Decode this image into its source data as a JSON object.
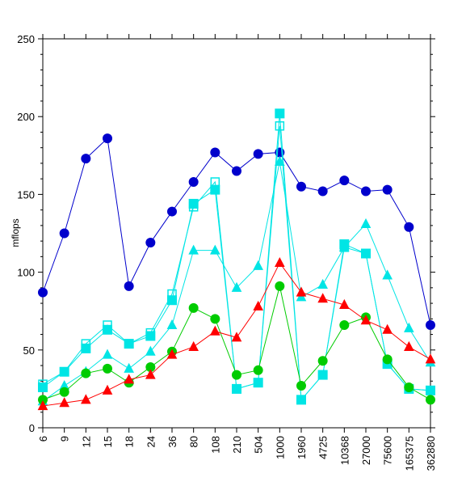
{
  "chart_data": {
    "type": "line",
    "title": "",
    "xlabel": "",
    "ylabel": "mflops",
    "ylim": [
      0,
      250
    ],
    "yticks": [
      0,
      50,
      100,
      150,
      200,
      250
    ],
    "grid": false,
    "legend": "none",
    "categories": [
      "6",
      "9",
      "12",
      "15",
      "18",
      "24",
      "36",
      "80",
      "108",
      "210",
      "504",
      "1000",
      "1960",
      "4725",
      "10368",
      "27000",
      "75600",
      "165375",
      "362880"
    ],
    "series": [
      {
        "color": "#0000cc",
        "marker": "circle",
        "filled": true,
        "values": [
          87,
          125,
          173,
          186,
          91,
          119,
          139,
          158,
          177,
          165,
          176,
          177,
          155,
          152,
          159,
          152,
          153,
          129,
          66
        ]
      },
      {
        "color": "#00e5e5",
        "marker": "square",
        "filled": false,
        "values": [
          28,
          36,
          54,
          66,
          54,
          61,
          86,
          142,
          158,
          25,
          29,
          194,
          18,
          34,
          116,
          112,
          41,
          25,
          24
        ]
      },
      {
        "color": "#00e5e5",
        "marker": "square",
        "filled": true,
        "values": [
          26,
          36,
          51,
          63,
          54,
          59,
          82,
          144,
          153,
          25,
          29,
          202,
          18,
          34,
          118,
          112,
          41,
          25,
          24
        ]
      },
      {
        "color": "#00e5e5",
        "marker": "triangle",
        "filled": true,
        "values": [
          17,
          27,
          36,
          47,
          38,
          49,
          66,
          114,
          114,
          90,
          104,
          171,
          84,
          92,
          116,
          131,
          98,
          64,
          42
        ]
      },
      {
        "color": "#00cc00",
        "marker": "circle",
        "filled": true,
        "values": [
          18,
          23,
          35,
          38,
          29,
          39,
          49,
          77,
          70,
          34,
          37,
          91,
          27,
          43,
          66,
          71,
          44,
          26,
          18
        ]
      },
      {
        "color": "#ff0000",
        "marker": "triangle",
        "filled": true,
        "values": [
          14,
          16,
          18,
          24,
          31,
          34,
          47,
          52,
          62,
          58,
          78,
          106,
          87,
          83,
          79,
          69,
          63,
          52,
          44
        ]
      }
    ]
  }
}
